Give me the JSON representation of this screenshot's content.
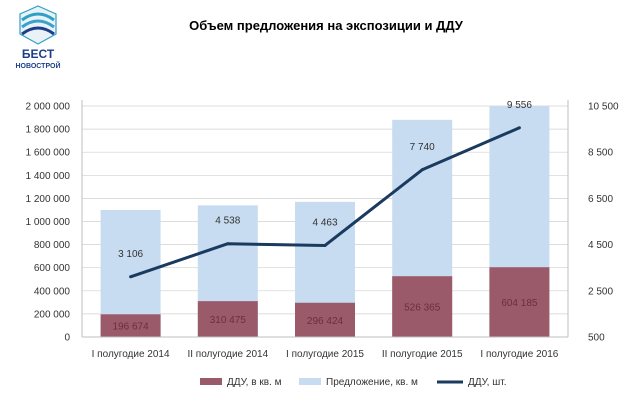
{
  "logo": {
    "line1": "БЕСТ",
    "line2": "НОВОСТРОЙ"
  },
  "chart_data": {
    "type": "bar",
    "title": "Объем предложения на экспозиции и ДДУ",
    "categories": [
      "I полугодие 2014",
      "II полугодие 2014",
      "I полугодие 2015",
      "II полугодие 2015",
      "I полугодие 2016"
    ],
    "series": [
      {
        "name": "ДДУ, в кв. м",
        "type": "bar",
        "axis": "left",
        "color": "#9b5a6a",
        "values": [
          196674,
          310475,
          296424,
          526365,
          604185
        ],
        "labels": [
          "196 674",
          "310 475",
          "296 424",
          "526 365",
          "604 185"
        ]
      },
      {
        "name": "Предложение, кв. м",
        "type": "bar",
        "axis": "left",
        "color": "#c7dcf0",
        "values": [
          1100000,
          1140000,
          1170000,
          1880000,
          2000000
        ]
      },
      {
        "name": "ДДУ, шт.",
        "type": "line",
        "axis": "right",
        "color": "#1a3a5f",
        "values": [
          3106,
          4538,
          4463,
          7740,
          9556
        ],
        "labels": [
          "3 106",
          "4 538",
          "4 463",
          "7 740",
          "9 556"
        ]
      }
    ],
    "yLeft": {
      "min": 0,
      "max": 2000000,
      "ticks": [
        0,
        200000,
        400000,
        600000,
        800000,
        1000000,
        1200000,
        1400000,
        1600000,
        1800000,
        2000000
      ],
      "tick_labels": [
        "0",
        "200 000",
        "400 000",
        "600 000",
        "800 000",
        "1 000 000",
        "1 200 000",
        "1 400 000",
        "1 600 000",
        "1 800 000",
        "2 000 000"
      ]
    },
    "yRight": {
      "min": 500,
      "max": 10500,
      "ticks": [
        500,
        2500,
        4500,
        6500,
        8500,
        10500
      ],
      "tick_labels": [
        "500",
        "2 500",
        "4 500",
        "6 500",
        "8 500",
        "10 500"
      ]
    },
    "grid": true,
    "legend": "bottom"
  }
}
